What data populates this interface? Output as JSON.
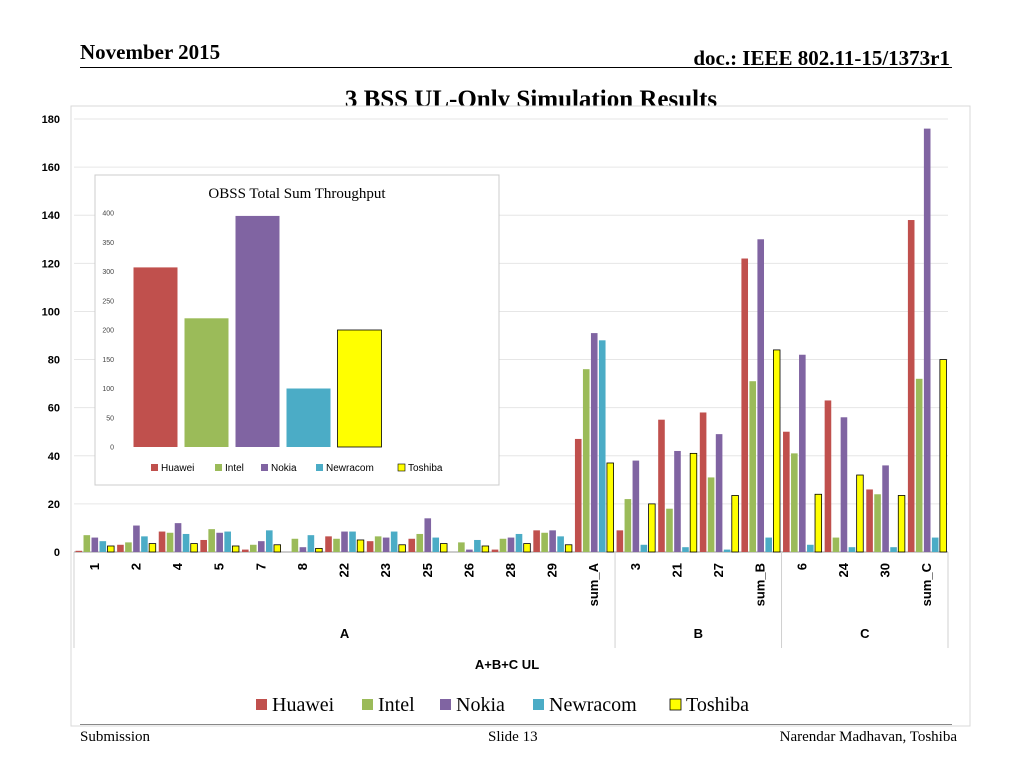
{
  "header": {
    "date": "November 2015",
    "doc": "doc.: IEEE 802.11-15/1373r1",
    "title": "3 BSS UL-Only Simulation Results"
  },
  "footer": {
    "left": "Submission",
    "center": "Slide 13",
    "right": "Narendar Madhavan, Toshiba"
  },
  "colors": {
    "Huawei": "#c0504d",
    "Intel": "#9bbb59",
    "Nokia": "#8064a2",
    "Newracom": "#4bacc6",
    "Toshiba": "#ffff00"
  },
  "chart_data": [
    {
      "type": "bar",
      "title": "",
      "xlabel": "A+B+C UL",
      "ylabel": "",
      "ylim": [
        0,
        180
      ],
      "yticks": [
        0,
        20,
        40,
        60,
        80,
        100,
        120,
        140,
        160,
        180
      ],
      "grid": true,
      "legend": "bottom",
      "groups": [
        {
          "label": "A",
          "categories": [
            "1",
            "2",
            "4",
            "5",
            "7",
            "8",
            "22",
            "23",
            "25",
            "26",
            "28",
            "29",
            "sum_A"
          ]
        },
        {
          "label": "B",
          "categories": [
            "3",
            "21",
            "27",
            "sum_B"
          ]
        },
        {
          "label": "C",
          "categories": [
            "6",
            "24",
            "30",
            "sum_C"
          ]
        }
      ],
      "categories": [
        "1",
        "2",
        "4",
        "5",
        "7",
        "8",
        "22",
        "23",
        "25",
        "26",
        "28",
        "29",
        "sum_A",
        "3",
        "21",
        "27",
        "sum_B",
        "6",
        "24",
        "30",
        "sum_C"
      ],
      "series": [
        {
          "name": "Huawei",
          "values": [
            0.5,
            3,
            8.5,
            5,
            1,
            0,
            6.5,
            4.5,
            5.5,
            0,
            1,
            9,
            47,
            9,
            55,
            58,
            122,
            50,
            63,
            26,
            138
          ]
        },
        {
          "name": "Intel",
          "values": [
            7,
            4,
            8,
            9.5,
            3,
            5.5,
            5.5,
            6.5,
            7.5,
            4,
            5.5,
            8,
            76,
            22,
            18,
            31,
            71,
            41,
            6,
            24,
            72
          ]
        },
        {
          "name": "Nokia",
          "values": [
            6,
            11,
            12,
            8,
            4.5,
            2,
            8.5,
            6,
            14,
            1,
            6,
            9,
            91,
            38,
            42,
            49,
            130,
            82,
            56,
            36,
            176
          ]
        },
        {
          "name": "Newracom",
          "values": [
            4.5,
            6.5,
            7.5,
            8.5,
            9,
            7,
            8.5,
            8.5,
            6,
            5,
            7.5,
            6.5,
            88,
            3,
            2,
            1,
            6,
            3,
            2,
            2,
            6
          ]
        },
        {
          "name": "Toshiba",
          "values": [
            2.5,
            3.5,
            3.5,
            2.5,
            3,
            1.5,
            5,
            3,
            3.5,
            2.5,
            3.5,
            3,
            37,
            20,
            41,
            23.5,
            84,
            24,
            32,
            23.5,
            80
          ]
        }
      ]
    },
    {
      "type": "bar",
      "title": "OBSS Total Sum Throughput",
      "xlabel": "",
      "ylabel": "",
      "ylim": [
        0,
        400
      ],
      "yticks": [
        0,
        50,
        100,
        150,
        200,
        250,
        300,
        350,
        400
      ],
      "grid": false,
      "legend": "bottom",
      "categories": [
        "Huawei",
        "Intel",
        "Nokia",
        "Newracom",
        "Toshiba"
      ],
      "values": [
        307,
        220,
        395,
        100,
        200
      ]
    }
  ]
}
